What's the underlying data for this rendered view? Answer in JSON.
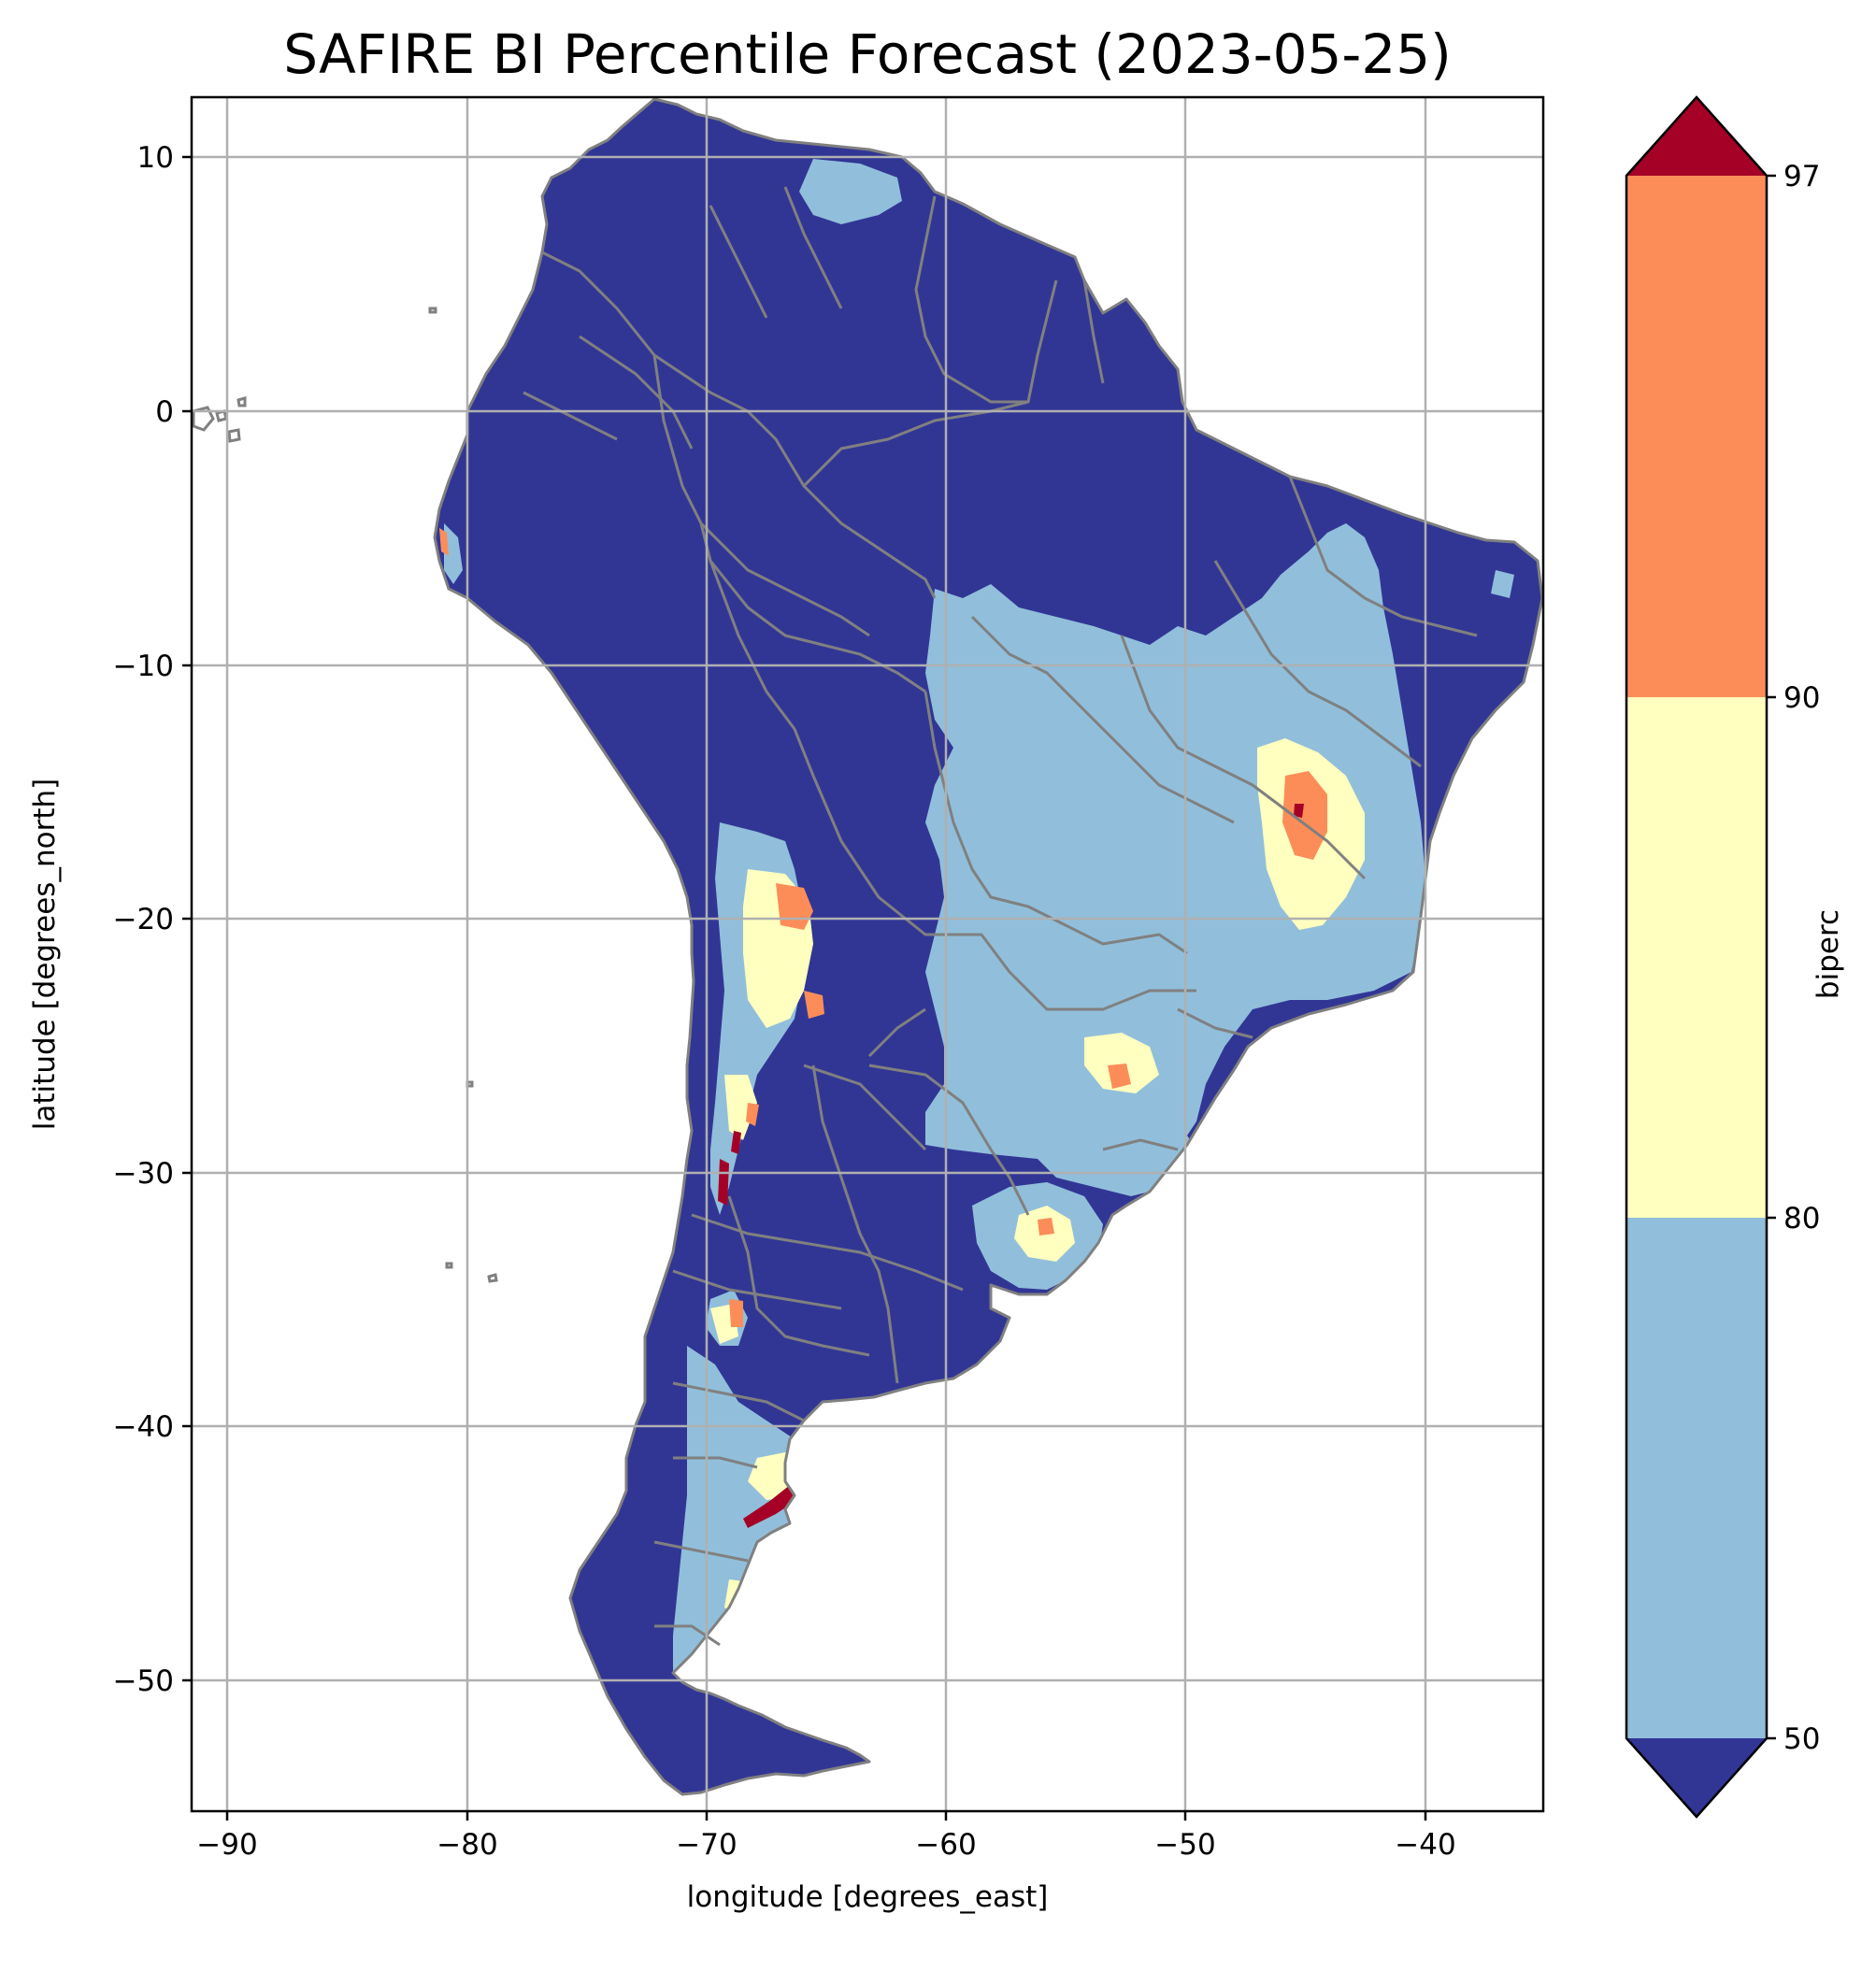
{
  "chart_data": {
    "type": "heatmap",
    "title": "SAFIRE BI Percentile Forecast (2023-05-25)",
    "xlabel": "longitude [degrees_east]",
    "ylabel": "latitude [degrees_north]",
    "xlim": [
      -91.5,
      -35
    ],
    "ylim": [
      -55.8,
      12.4
    ],
    "xticks": [
      -90,
      -80,
      -70,
      -60,
      -50,
      -40
    ],
    "xtick_labels": [
      "−90",
      "−80",
      "−70",
      "−60",
      "−50",
      "−40"
    ],
    "yticks": [
      10,
      0,
      -10,
      -20,
      -30,
      -40,
      -50
    ],
    "ytick_labels": [
      "10",
      "0",
      "−10",
      "−20",
      "−30",
      "−40",
      "−50"
    ],
    "grid": true,
    "region": "South America",
    "variable": "biperc",
    "colorbar": {
      "label": "biperc",
      "ticks": [
        50,
        80,
        90,
        97
      ],
      "tick_labels": [
        "50",
        "80",
        "90",
        "97"
      ],
      "extend": "both",
      "bins": [
        {
          "range": "<50",
          "color": "#313695"
        },
        {
          "range": "50-80",
          "color": "#91bfdb"
        },
        {
          "range": "80-90",
          "color": "#ffffbf"
        },
        {
          "range": "90-97",
          "color": "#fc8d59"
        },
        {
          "range": ">97",
          "color": "#a50026"
        }
      ]
    },
    "boundary_color": "#808080",
    "gridline_color": "#b0b0b0"
  }
}
